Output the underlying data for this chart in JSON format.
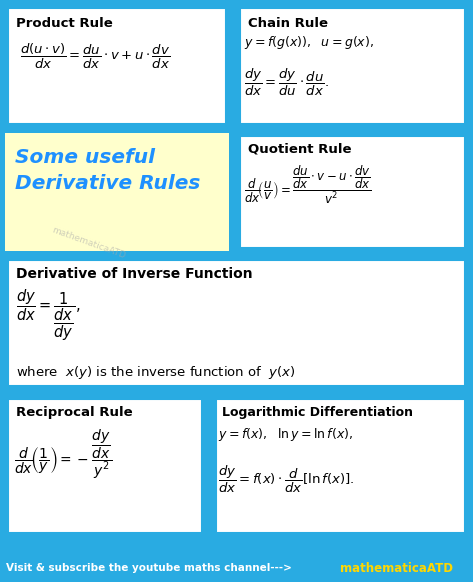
{
  "bg_color": "#29ABE2",
  "white_box_color": "#FFFFFF",
  "title_text1": "Some useful",
  "title_text2": "Derivative Rules",
  "title_color": "#1E90FF",
  "title_bg": "#FFFFCC",
  "watermark": "mathematicaATD",
  "footer_left": "Visit & subscribe the youtube maths channel--->",
  "footer_right": "mathematicaATD",
  "footer_color_left": "#FFFFFF",
  "footer_color_right": "#FFD700",
  "text_color": "#000000",
  "inner_border": "#29ABE2"
}
